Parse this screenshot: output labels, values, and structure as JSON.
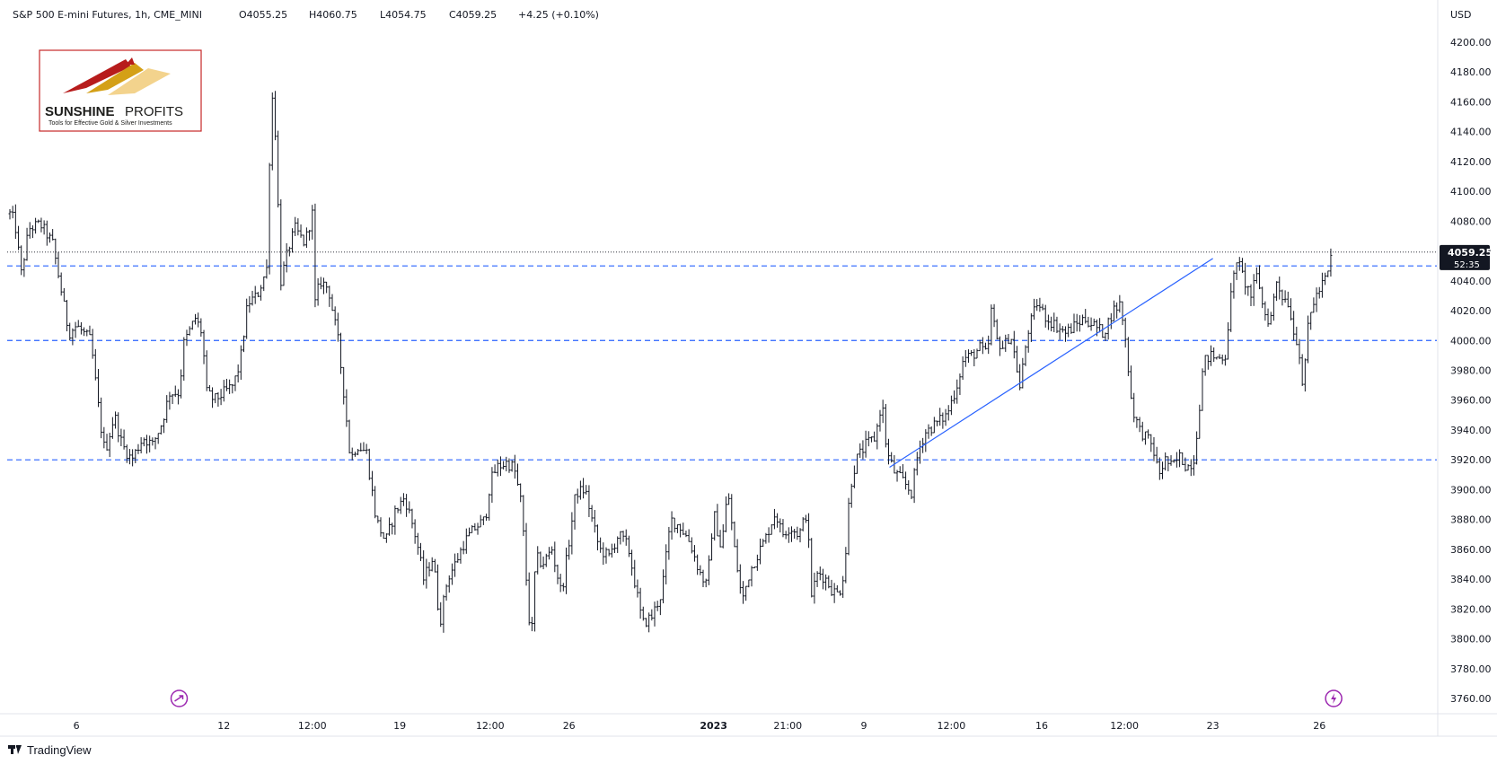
{
  "header": {
    "symbol": "S&P 500 E-mini Futures, 1h, CME_MINI",
    "open": "O4055.25",
    "high": "H4060.75",
    "low": "L4054.75",
    "close": "C4059.25",
    "change": "+4.25 (+0.10%)"
  },
  "logo": {
    "name_bold": "SUNSHINE",
    "name_light": "PROFITS",
    "tagline": "Tools for Effective Gold & Silver Investments"
  },
  "footer": {
    "brand": "TradingView"
  },
  "colors": {
    "candle": "#131722",
    "dashed_line": "#2962ff",
    "trend_line": "#2962ff",
    "price_tag_bg": "#131722",
    "event_icon": "#9c27b0",
    "grid": "#f0f3fa"
  },
  "chart_data": {
    "type": "candlestick",
    "currency": "USD",
    "ylim": [
      3750,
      4210
    ],
    "y_ticks": [
      "4200.00",
      "4180.00",
      "4160.00",
      "4140.00",
      "4120.00",
      "4100.00",
      "4080.00",
      "4060.00",
      "4040.00",
      "4020.00",
      "4000.00",
      "3980.00",
      "3960.00",
      "3940.00",
      "3920.00",
      "3900.00",
      "3880.00",
      "3860.00",
      "3840.00",
      "3820.00",
      "3800.00",
      "3780.00",
      "3760.00"
    ],
    "x_ticks": [
      "6",
      "12",
      "12:00",
      "19",
      "12:00",
      "26",
      "2023",
      "21:00",
      "9",
      "12:00",
      "16",
      "12:00",
      "23",
      "26"
    ],
    "x_tick_bars": [
      70,
      225,
      318,
      410,
      505,
      588,
      740,
      818,
      898,
      990,
      1085,
      1172,
      1265,
      1377
    ],
    "bar_count": 1390,
    "last_price": "4059.25",
    "countdown": "52:35",
    "horizontal_lines": [
      4050,
      4000,
      3920
    ],
    "last_price_line": 4059.25,
    "trend_line": {
      "from": {
        "bar": 925,
        "price": 3915
      },
      "to": {
        "bar": 1265,
        "price": 4055
      }
    },
    "event_icons": [
      {
        "bar": 178,
        "icon": "arrow-icon"
      },
      {
        "bar": 1392,
        "icon": "lightning-icon"
      }
    ],
    "path": [
      [
        0,
        4085
      ],
      [
        5,
        4080
      ],
      [
        12,
        4045
      ],
      [
        20,
        4075
      ],
      [
        32,
        4078
      ],
      [
        45,
        4065
      ],
      [
        55,
        4030
      ],
      [
        62,
        4005
      ],
      [
        70,
        4010
      ],
      [
        85,
        4000
      ],
      [
        95,
        3945
      ],
      [
        100,
        3925
      ],
      [
        110,
        3950
      ],
      [
        118,
        3930
      ],
      [
        128,
        3920
      ],
      [
        140,
        3935
      ],
      [
        150,
        3930
      ],
      [
        160,
        3945
      ],
      [
        168,
        3965
      ],
      [
        178,
        3965
      ],
      [
        183,
        3998
      ],
      [
        195,
        4015
      ],
      [
        202,
        4005
      ],
      [
        207,
        3965
      ],
      [
        215,
        3960
      ],
      [
        225,
        3965
      ],
      [
        235,
        3970
      ],
      [
        242,
        3985
      ],
      [
        250,
        4025
      ],
      [
        260,
        4030
      ],
      [
        270,
        4048
      ],
      [
        275,
        4170
      ],
      [
        279,
        4140
      ],
      [
        285,
        4040
      ],
      [
        293,
        4062
      ],
      [
        300,
        4075
      ],
      [
        310,
        4065
      ],
      [
        318,
        4085
      ],
      [
        321,
        4025
      ],
      [
        326,
        4040
      ],
      [
        335,
        4035
      ],
      [
        345,
        4000
      ],
      [
        352,
        3960
      ],
      [
        358,
        3920
      ],
      [
        365,
        3930
      ],
      [
        375,
        3925
      ],
      [
        385,
        3880
      ],
      [
        395,
        3865
      ],
      [
        405,
        3885
      ],
      [
        415,
        3895
      ],
      [
        422,
        3880
      ],
      [
        428,
        3865
      ],
      [
        435,
        3840
      ],
      [
        445,
        3855
      ],
      [
        452,
        3810
      ],
      [
        460,
        3840
      ],
      [
        468,
        3850
      ],
      [
        478,
        3865
      ],
      [
        490,
        3875
      ],
      [
        500,
        3880
      ],
      [
        505,
        3905
      ],
      [
        512,
        3915
      ],
      [
        522,
        3918
      ],
      [
        530,
        3915
      ],
      [
        538,
        3890
      ],
      [
        543,
        3840
      ],
      [
        548,
        3795
      ],
      [
        553,
        3855
      ],
      [
        560,
        3850
      ],
      [
        570,
        3860
      ],
      [
        580,
        3830
      ],
      [
        588,
        3865
      ],
      [
        595,
        3898
      ],
      [
        605,
        3900
      ],
      [
        612,
        3880
      ],
      [
        620,
        3860
      ],
      [
        630,
        3855
      ],
      [
        640,
        3870
      ],
      [
        650,
        3862
      ],
      [
        658,
        3835
      ],
      [
        665,
        3810
      ],
      [
        675,
        3815
      ],
      [
        685,
        3830
      ],
      [
        695,
        3880
      ],
      [
        705,
        3875
      ],
      [
        715,
        3865
      ],
      [
        725,
        3845
      ],
      [
        733,
        3835
      ],
      [
        740,
        3885
      ],
      [
        748,
        3860
      ],
      [
        755,
        3900
      ],
      [
        762,
        3860
      ],
      [
        770,
        3825
      ],
      [
        778,
        3845
      ],
      [
        785,
        3855
      ],
      [
        795,
        3868
      ],
      [
        805,
        3885
      ],
      [
        812,
        3870
      ],
      [
        820,
        3875
      ],
      [
        830,
        3870
      ],
      [
        838,
        3885
      ],
      [
        843,
        3830
      ],
      [
        850,
        3845
      ],
      [
        858,
        3840
      ],
      [
        865,
        3832
      ],
      [
        872,
        3830
      ],
      [
        878,
        3848
      ],
      [
        883,
        3900
      ],
      [
        890,
        3920
      ],
      [
        900,
        3930
      ],
      [
        910,
        3935
      ],
      [
        917,
        3960
      ],
      [
        922,
        3925
      ],
      [
        930,
        3912
      ],
      [
        940,
        3905
      ],
      [
        948,
        3898
      ],
      [
        955,
        3925
      ],
      [
        962,
        3938
      ],
      [
        975,
        3945
      ],
      [
        985,
        3950
      ],
      [
        995,
        3968
      ],
      [
        1003,
        3988
      ],
      [
        1012,
        3990
      ],
      [
        1020,
        3995
      ],
      [
        1028,
        3990
      ],
      [
        1032,
        4020
      ],
      [
        1038,
        4000
      ],
      [
        1045,
        3995
      ],
      [
        1052,
        4005
      ],
      [
        1058,
        3985
      ],
      [
        1062,
        3968
      ],
      [
        1070,
        4005
      ],
      [
        1080,
        4025
      ],
      [
        1090,
        4015
      ],
      [
        1100,
        4010
      ],
      [
        1110,
        4005
      ],
      [
        1120,
        4010
      ],
      [
        1130,
        4015
      ],
      [
        1140,
        4010
      ],
      [
        1150,
        4005
      ],
      [
        1160,
        4020
      ],
      [
        1168,
        4025
      ],
      [
        1174,
        3995
      ],
      [
        1180,
        3955
      ],
      [
        1188,
        3940
      ],
      [
        1195,
        3935
      ],
      [
        1202,
        3928
      ],
      [
        1208,
        3910
      ],
      [
        1215,
        3920
      ],
      [
        1222,
        3915
      ],
      [
        1230,
        3922
      ],
      [
        1238,
        3915
      ],
      [
        1245,
        3920
      ],
      [
        1250,
        3950
      ],
      [
        1255,
        3985
      ],
      [
        1262,
        3990
      ],
      [
        1270,
        3988
      ],
      [
        1278,
        3990
      ],
      [
        1284,
        4030
      ],
      [
        1290,
        4055
      ],
      [
        1298,
        4040
      ],
      [
        1305,
        4030
      ],
      [
        1312,
        4045
      ],
      [
        1318,
        4020
      ],
      [
        1325,
        4012
      ],
      [
        1332,
        4040
      ],
      [
        1338,
        4030
      ],
      [
        1345,
        4025
      ],
      [
        1350,
        4005
      ],
      [
        1355,
        3998
      ],
      [
        1360,
        3965
      ],
      [
        1365,
        4010
      ],
      [
        1370,
        4025
      ],
      [
        1378,
        4035
      ],
      [
        1386,
        4045
      ],
      [
        1390,
        4059
      ]
    ]
  }
}
